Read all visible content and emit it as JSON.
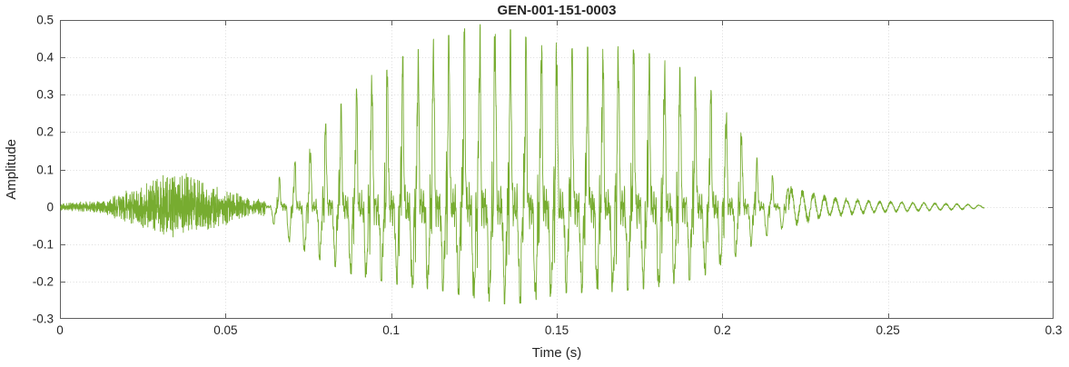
{
  "chart_data": {
    "type": "line",
    "subtype": "audio-waveform",
    "title": "GEN-001-151-0003",
    "xlabel": "Time (s)",
    "ylabel": "Amplitude",
    "xlim": [
      0,
      0.3
    ],
    "ylim": [
      -0.3,
      0.5
    ],
    "xticks": [
      0,
      0.05,
      0.1,
      0.15,
      0.2,
      0.25,
      0.3
    ],
    "xtick_labels": [
      "0",
      "0.05",
      "0.1",
      "0.15",
      "0.2",
      "0.25",
      "0.3"
    ],
    "yticks": [
      -0.3,
      -0.2,
      -0.1,
      0,
      0.1,
      0.2,
      0.3,
      0.4,
      0.5
    ],
    "ytick_labels": [
      "-0.3",
      "-0.2",
      "-0.1",
      "0",
      "0.1",
      "0.2",
      "0.3",
      "0.4",
      "0.5"
    ],
    "grid": true,
    "legend": false,
    "line_color": "#77AC30",
    "axis_color": "#606060",
    "grid_color": "rgba(38,38,38,0.16)",
    "background": "#ffffff",
    "signal": {
      "description": "speech-like waveform: weak noise burst ~0.02-0.055s, strong voiced segment ~0.065-0.215s peaking at 0.49 near t=0.128s with negative excursions to -0.26, decaying ripple until ~0.28s",
      "t_start": 0.0,
      "t_end": 0.279,
      "sample_rate": 20000,
      "segments": [
        {
          "type": "noise",
          "t0": 0.0,
          "t1": 0.062
        },
        {
          "type": "voiced",
          "t0": 0.062,
          "t1": 0.22,
          "f0": 215
        },
        {
          "type": "ripple",
          "t0": 0.22,
          "t1": 0.28,
          "f": 300
        }
      ],
      "envelope": [
        [
          0.0,
          0.01,
          -0.01
        ],
        [
          0.012,
          0.015,
          -0.015
        ],
        [
          0.018,
          0.035,
          -0.03
        ],
        [
          0.025,
          0.06,
          -0.05
        ],
        [
          0.032,
          0.085,
          -0.07
        ],
        [
          0.038,
          0.09,
          -0.075
        ],
        [
          0.045,
          0.065,
          -0.055
        ],
        [
          0.052,
          0.04,
          -0.035
        ],
        [
          0.058,
          0.02,
          -0.02
        ],
        [
          0.063,
          0.03,
          -0.025
        ],
        [
          0.067,
          0.09,
          -0.08
        ],
        [
          0.072,
          0.13,
          -0.11
        ],
        [
          0.078,
          0.19,
          -0.14
        ],
        [
          0.083,
          0.26,
          -0.16
        ],
        [
          0.088,
          0.3,
          -0.18
        ],
        [
          0.093,
          0.35,
          -0.19
        ],
        [
          0.098,
          0.36,
          -0.2
        ],
        [
          0.103,
          0.4,
          -0.21
        ],
        [
          0.108,
          0.42,
          -0.22
        ],
        [
          0.113,
          0.45,
          -0.22
        ],
        [
          0.118,
          0.46,
          -0.23
        ],
        [
          0.123,
          0.48,
          -0.24
        ],
        [
          0.128,
          0.49,
          -0.25
        ],
        [
          0.133,
          0.48,
          -0.26
        ],
        [
          0.138,
          0.47,
          -0.26
        ],
        [
          0.143,
          0.44,
          -0.25
        ],
        [
          0.148,
          0.45,
          -0.24
        ],
        [
          0.153,
          0.42,
          -0.23
        ],
        [
          0.158,
          0.43,
          -0.23
        ],
        [
          0.163,
          0.42,
          -0.22
        ],
        [
          0.168,
          0.43,
          -0.23
        ],
        [
          0.173,
          0.42,
          -0.22
        ],
        [
          0.178,
          0.41,
          -0.22
        ],
        [
          0.183,
          0.39,
          -0.21
        ],
        [
          0.188,
          0.37,
          -0.2
        ],
        [
          0.193,
          0.34,
          -0.19
        ],
        [
          0.198,
          0.3,
          -0.17
        ],
        [
          0.203,
          0.24,
          -0.14
        ],
        [
          0.208,
          0.16,
          -0.11
        ],
        [
          0.213,
          0.1,
          -0.08
        ],
        [
          0.218,
          0.06,
          -0.06
        ],
        [
          0.224,
          0.045,
          -0.045
        ],
        [
          0.23,
          0.03,
          -0.03
        ],
        [
          0.238,
          0.022,
          -0.022
        ],
        [
          0.246,
          0.016,
          -0.016
        ],
        [
          0.255,
          0.013,
          -0.013
        ],
        [
          0.264,
          0.01,
          -0.01
        ],
        [
          0.272,
          0.008,
          -0.008
        ],
        [
          0.279,
          0.004,
          -0.004
        ]
      ]
    }
  }
}
